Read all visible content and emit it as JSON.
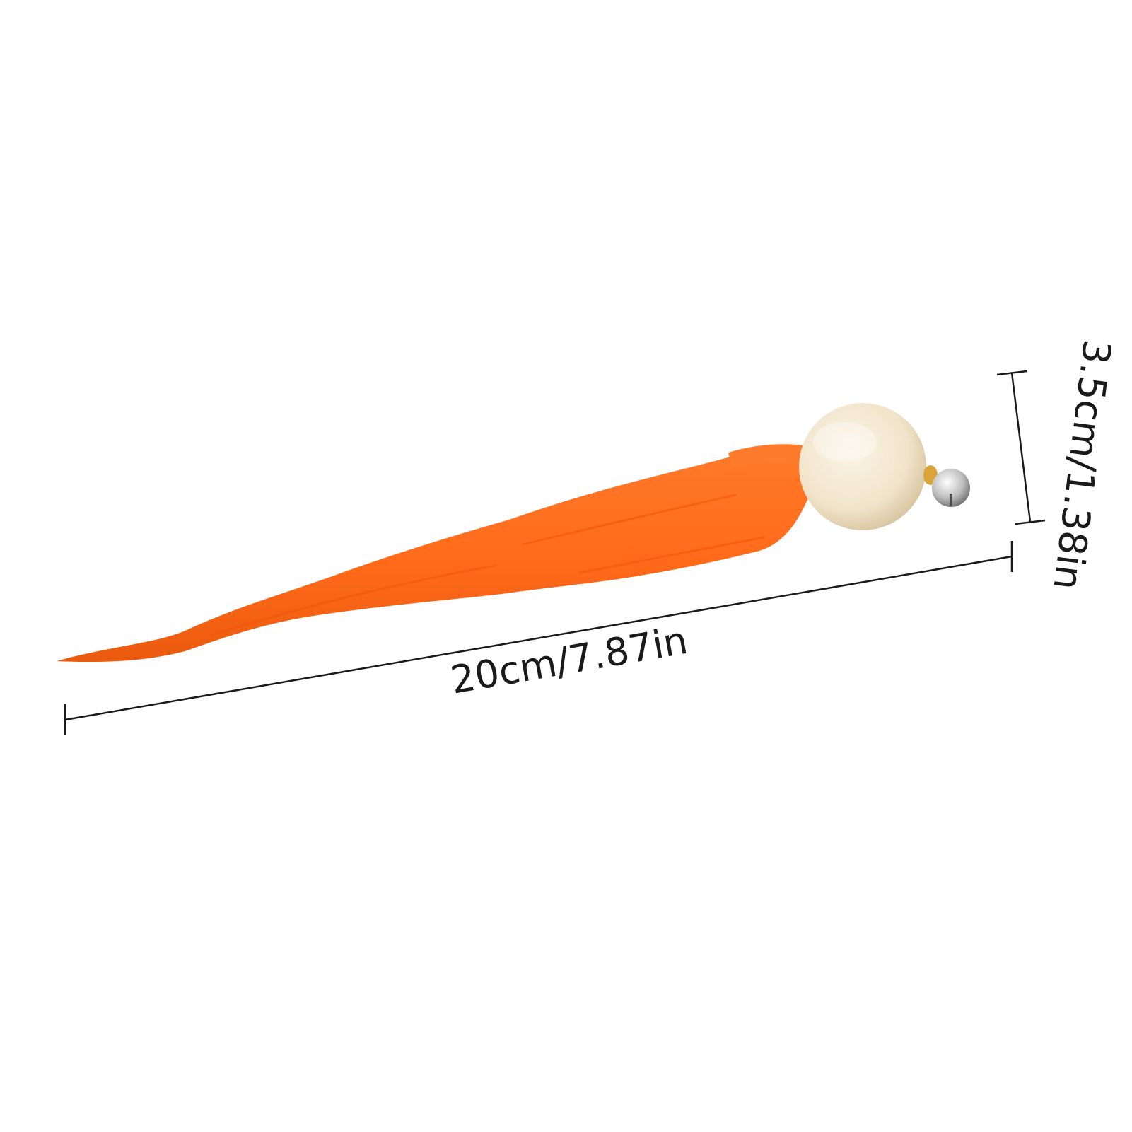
{
  "product": {
    "wand_tail_color": "#ff6d1f",
    "wand_tail_shadow": "#e85a10",
    "wood_ball_color": "#f3e8d2",
    "bell_color": "#c9c9c9"
  },
  "dimensions": {
    "length_label": "20cm/7.87in",
    "diameter_label": "3.5cm/1.38in",
    "line_color": "#1a1a1a"
  }
}
